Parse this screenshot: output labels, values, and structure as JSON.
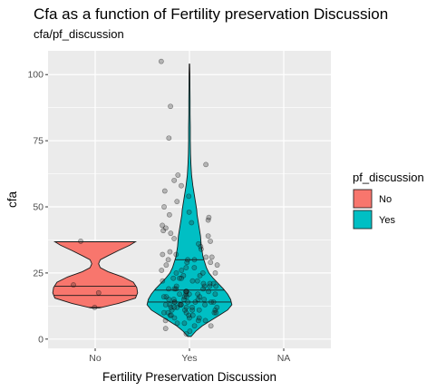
{
  "chart_data": {
    "type": "violin",
    "title": "Cfa as a function of Fertility preservation Discussion",
    "subtitle": "cfa/pf_discussion",
    "xlabel": "Fertility Preservation Discussion",
    "ylabel": "cfa",
    "categories": [
      "No",
      "Yes",
      "NA"
    ],
    "ylim": [
      -3.5,
      109
    ],
    "yticks": [
      0,
      25,
      50,
      75,
      100
    ],
    "grid": true,
    "legend": {
      "title": "pf_discussion",
      "placement": "right",
      "entries": [
        {
          "label": "No",
          "color": "#F8766D"
        },
        {
          "label": "Yes",
          "color": "#00BFC4"
        }
      ]
    },
    "series": [
      {
        "name": "No",
        "category": "No",
        "color": "#F8766D",
        "quantiles": [
          12,
          16.5,
          20
        ],
        "density": [
          [
            11.8,
            0.1
          ],
          [
            13.5,
            0.55
          ],
          [
            15.5,
            0.95
          ],
          [
            17.5,
            1.0
          ],
          [
            19.5,
            0.98
          ],
          [
            21.5,
            0.9
          ],
          [
            23.5,
            0.65
          ],
          [
            25.5,
            0.3
          ],
          [
            27,
            0.12
          ],
          [
            28.5,
            0.08
          ],
          [
            30,
            0.12
          ],
          [
            31.5,
            0.3
          ],
          [
            33.5,
            0.55
          ],
          [
            35.5,
            0.82
          ],
          [
            36.8,
            0.95
          ]
        ],
        "points": [
          12,
          17.5,
          20.5,
          37
        ]
      },
      {
        "name": "Yes",
        "category": "Yes",
        "color": "#00BFC4",
        "quantiles": [
          14,
          18.5,
          30
        ],
        "density": [
          [
            1,
            0.04
          ],
          [
            3,
            0.15
          ],
          [
            5,
            0.3
          ],
          [
            7,
            0.5
          ],
          [
            9,
            0.7
          ],
          [
            11,
            0.9
          ],
          [
            13,
            1.0
          ],
          [
            15,
            0.97
          ],
          [
            17,
            0.9
          ],
          [
            19,
            0.8
          ],
          [
            21,
            0.68
          ],
          [
            23,
            0.56
          ],
          [
            25,
            0.46
          ],
          [
            27,
            0.4
          ],
          [
            29,
            0.36
          ],
          [
            31,
            0.32
          ],
          [
            33,
            0.3
          ],
          [
            35,
            0.28
          ],
          [
            37,
            0.27
          ],
          [
            39,
            0.26
          ],
          [
            41,
            0.24
          ],
          [
            43,
            0.22
          ],
          [
            45,
            0.2
          ],
          [
            47,
            0.18
          ],
          [
            49,
            0.17
          ],
          [
            52,
            0.14
          ],
          [
            55,
            0.11
          ],
          [
            58,
            0.08
          ],
          [
            62,
            0.05
          ],
          [
            66,
            0.035
          ],
          [
            70,
            0.025
          ],
          [
            75,
            0.02
          ],
          [
            80,
            0.02
          ],
          [
            85,
            0.015
          ],
          [
            90,
            0.015
          ],
          [
            95,
            0.012
          ],
          [
            100,
            0.01
          ],
          [
            104,
            0.005
          ]
        ],
        "points": [
          2,
          3,
          4,
          5,
          5,
          6,
          6,
          7,
          7,
          7,
          8,
          8,
          8,
          9,
          9,
          9,
          9,
          10,
          10,
          10,
          10,
          10,
          11,
          11,
          11,
          11,
          11,
          12,
          12,
          12,
          12,
          12,
          12,
          13,
          13,
          13,
          13,
          13,
          13,
          14,
          14,
          14,
          14,
          14,
          14,
          15,
          15,
          15,
          15,
          15,
          16,
          16,
          16,
          16,
          16,
          17,
          17,
          17,
          17,
          17,
          18,
          18,
          18,
          18,
          19,
          19,
          19,
          19,
          20,
          20,
          20,
          20,
          21,
          21,
          21,
          22,
          22,
          22,
          23,
          23,
          23,
          24,
          24,
          25,
          25,
          25,
          26,
          26,
          27,
          27,
          28,
          28,
          29,
          29,
          30,
          30,
          30,
          31,
          31,
          32,
          32,
          33,
          34,
          35,
          36,
          37,
          38,
          39,
          40,
          41,
          42,
          43,
          44,
          45,
          46,
          47,
          48,
          50,
          52,
          54,
          56,
          58,
          60,
          62,
          66,
          76,
          88,
          105
        ]
      }
    ]
  }
}
